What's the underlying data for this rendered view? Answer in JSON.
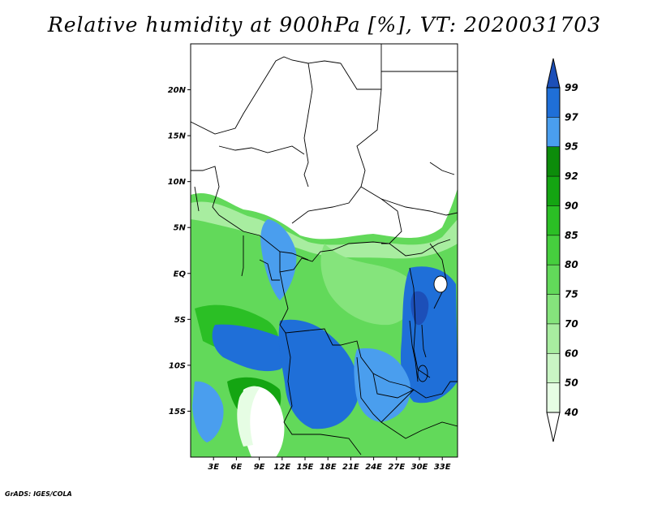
{
  "title": "Relative humidity at 900hPa [%], VT: 2020031703",
  "credit": "GrADS: IGES/COLA",
  "map": {
    "lon_range": [
      0,
      35
    ],
    "lat_range": [
      -20,
      25
    ],
    "lat_ticks": [
      "20N",
      "15N",
      "10N",
      "5N",
      "EQ",
      "5S",
      "10S",
      "15S"
    ],
    "lat_values": [
      20,
      15,
      10,
      5,
      0,
      -5,
      -10,
      -15
    ],
    "lon_ticks": [
      "3E",
      "6E",
      "9E",
      "12E",
      "15E",
      "18E",
      "21E",
      "24E",
      "27E",
      "30E",
      "33E"
    ],
    "lon_values": [
      3,
      6,
      9,
      12,
      15,
      18,
      21,
      24,
      27,
      30,
      33
    ]
  },
  "colorbar": {
    "labels": [
      "40",
      "50",
      "60",
      "70",
      "75",
      "80",
      "85",
      "90",
      "92",
      "95",
      "97",
      "99"
    ],
    "colors": [
      "#e6fde4",
      "#c9f5c4",
      "#a8eda0",
      "#85e47c",
      "#62d95a",
      "#46cf3e",
      "#2bbf25",
      "#14a512",
      "#0c8c0a",
      "#4a9eee",
      "#1f6fd8",
      "#1c4fb8"
    ]
  }
}
